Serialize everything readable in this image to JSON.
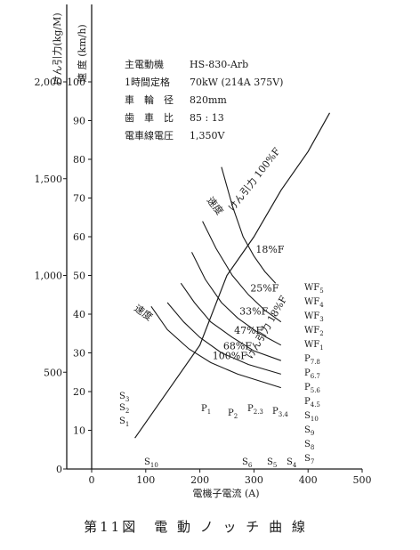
{
  "chart_data": {
    "type": "line",
    "title": "",
    "caption": "第11図　電 動 ノ ッ チ 曲 線",
    "xlabel": "電機子電流 (A)",
    "ylabel_speed": "速 度 (km/h)",
    "ylabel_te": "けん引力(kg/M)",
    "xlim": [
      0,
      500
    ],
    "ylim_speed": [
      0,
      100
    ],
    "ylim_te": [
      0,
      2000
    ],
    "x_ticks": [
      "0",
      "100",
      "200",
      "300",
      "400",
      "500"
    ],
    "speed_ticks": [
      "0",
      "10",
      "20",
      "30",
      "40",
      "50",
      "60",
      "70",
      "80",
      "90",
      "100"
    ],
    "te_ticks": [
      "0",
      "500",
      "1,000",
      "1,500",
      "2,000"
    ],
    "grid": false,
    "specs": [
      {
        "label": "主電動機",
        "value": "HS-830-Arb"
      },
      {
        "label": "1時間定格",
        "value": "70kW (214A 375V)"
      },
      {
        "label": "車　輪　径",
        "value": "820mm"
      },
      {
        "label": "歯　車　比",
        "value": "85 : 13"
      },
      {
        "label": "電車線電圧",
        "value": "1,350V"
      }
    ],
    "tractive_effort_curve": {
      "label": "けん引力",
      "x": [
        80,
        150,
        200,
        250,
        300,
        350,
        400,
        440
      ],
      "y": [
        8,
        22,
        32,
        50,
        60,
        72,
        82,
        92
      ]
    },
    "speed_curves": [
      {
        "name": "WF5",
        "field": "18%F",
        "x": [
          240,
          260,
          280,
          300,
          320,
          340
        ],
        "y": [
          78,
          68,
          60,
          55,
          51,
          48
        ]
      },
      {
        "name": "WF4",
        "field": "25%F",
        "x": [
          205,
          230,
          260,
          290,
          320,
          350
        ],
        "y": [
          64,
          57,
          50,
          45,
          41,
          38
        ]
      },
      {
        "name": "WF3",
        "field": "33%F",
        "x": [
          185,
          210,
          240,
          270,
          310,
          350
        ],
        "y": [
          56,
          49,
          43,
          39,
          35,
          32
        ]
      },
      {
        "name": "WF2",
        "field": "47%F",
        "x": [
          165,
          190,
          220,
          260,
          300,
          350
        ],
        "y": [
          48,
          43,
          38,
          34,
          30.5,
          28
        ]
      },
      {
        "name": "WF1",
        "field": "68%F",
        "x": [
          140,
          170,
          200,
          240,
          290,
          350
        ],
        "y": [
          43,
          38,
          34,
          30,
          27,
          24.5
        ]
      },
      {
        "name": "P7.8",
        "field": "100%F",
        "x": [
          110,
          140,
          180,
          220,
          270,
          350
        ],
        "y": [
          42,
          36,
          31,
          27.5,
          24.5,
          21
        ]
      }
    ],
    "field_labels": [
      "100%F",
      "68%F",
      "47%F",
      "33%F",
      "25%F",
      "18%F"
    ],
    "right_labels": [
      {
        "main": "WF",
        "sub": "5"
      },
      {
        "main": "WF",
        "sub": "4"
      },
      {
        "main": "WF",
        "sub": "3"
      },
      {
        "main": "WF",
        "sub": "2"
      },
      {
        "main": "WF",
        "sub": "1"
      },
      {
        "main": "P",
        "sub": "7.8"
      },
      {
        "main": "P",
        "sub": "6.7"
      },
      {
        "main": "P",
        "sub": "5.6"
      },
      {
        "main": "P",
        "sub": "4.5"
      },
      {
        "main": "S",
        "sub": "10"
      },
      {
        "main": "S",
        "sub": "9"
      },
      {
        "main": "S",
        "sub": "8"
      },
      {
        "main": "S",
        "sub": "7"
      }
    ],
    "inner_labels": [
      {
        "main": "P",
        "sub": "1"
      },
      {
        "main": "P",
        "sub": "2"
      },
      {
        "main": "P",
        "sub": "2.3"
      },
      {
        "main": "P",
        "sub": "3.4"
      },
      {
        "main": "S",
        "sub": "3"
      },
      {
        "main": "S",
        "sub": "2"
      },
      {
        "main": "S",
        "sub": "1"
      },
      {
        "main": "S",
        "sub": "10"
      },
      {
        "main": "S",
        "sub": "6"
      },
      {
        "main": "S",
        "sub": "5"
      },
      {
        "main": "S",
        "sub": "4"
      }
    ],
    "curve_text": {
      "speed_upper": "速度",
      "te_upper": "けん引力 100%F",
      "speed_lower": "速度",
      "te_lower": "けん引力 18%F"
    }
  }
}
